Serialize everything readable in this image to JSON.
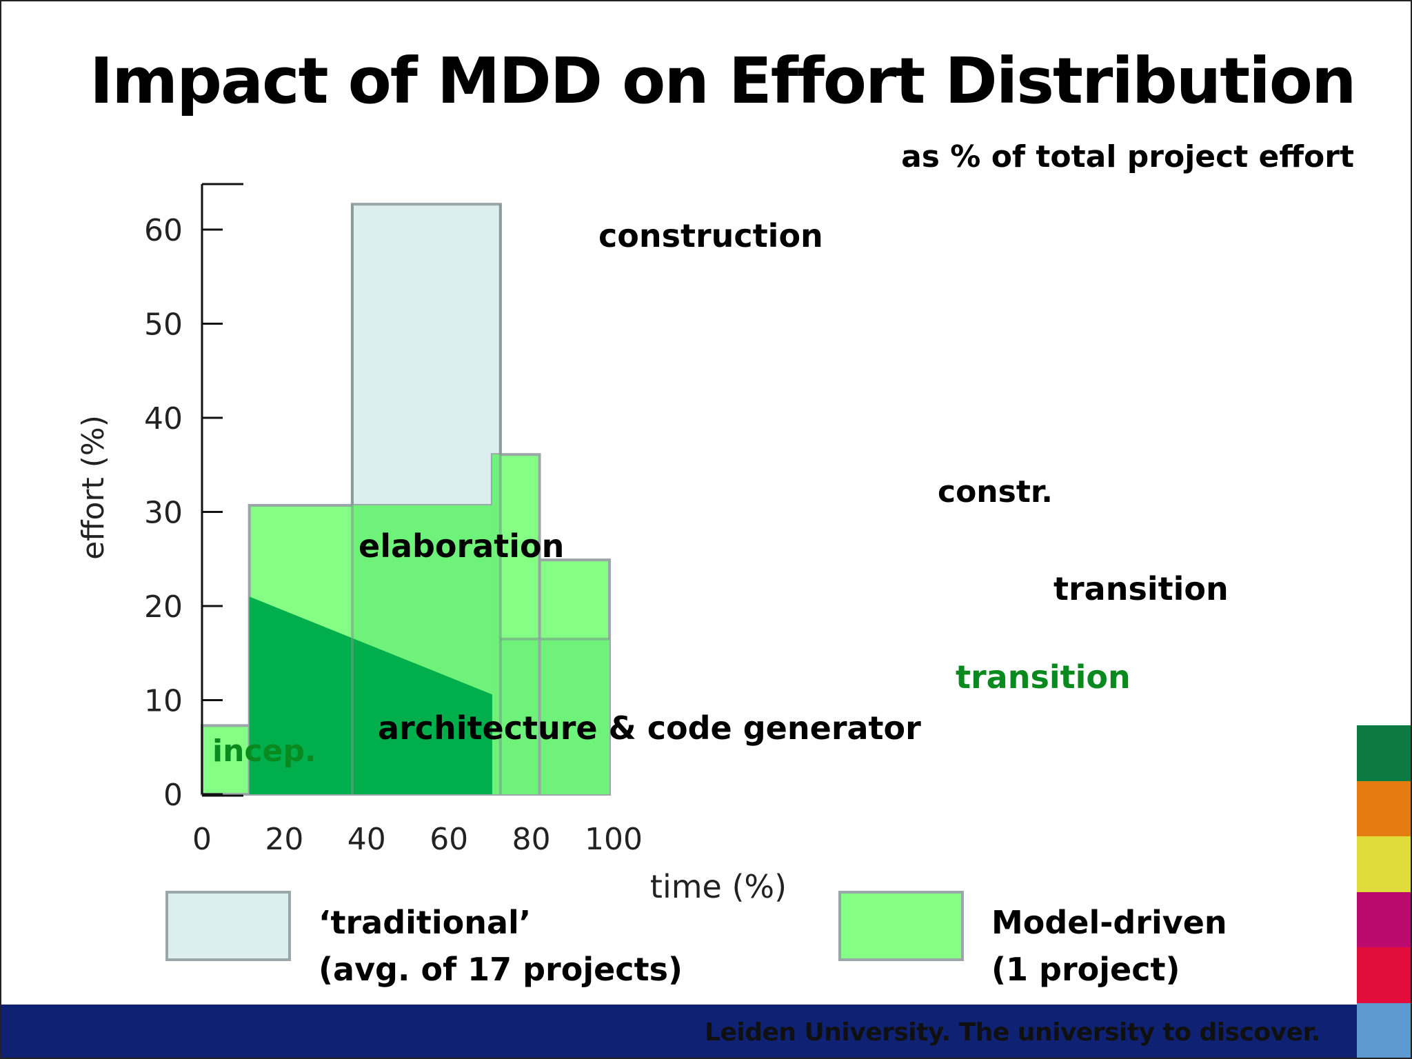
{
  "title": "Impact of MDD on Effort Distribution",
  "subtitle": "as % of total project effort",
  "footer": "Leiden University. The university to discover.",
  "brand_stripes": [
    "#0b7a43",
    "#e57c12",
    "#dedd3b",
    "#ba0a6e",
    "#e30d3c",
    "#5d98d1"
  ],
  "colors": {
    "traditional": "#ddeeee",
    "model_driven": "#85fe85",
    "overlap": "#6ff27a",
    "architecture": "#00af4c",
    "outline": "#9aa6a8"
  },
  "chart_data": {
    "type": "area",
    "title": "Impact of MDD on Effort Distribution",
    "xlabel": "time (%)",
    "ylabel": "effort (%)",
    "xlim": [
      0,
      100
    ],
    "ylim": [
      0,
      65
    ],
    "x_ticks": [
      "0",
      "20",
      "40",
      "60",
      "80",
      "100"
    ],
    "y_ticks": [
      "0",
      "10",
      "20",
      "30",
      "40",
      "50",
      "60"
    ],
    "grid": false,
    "series": [
      {
        "name": "'traditional' (avg. of 17 projects)",
        "phases": [
          {
            "label": "construction",
            "x": [
              36.5,
              72.5
            ],
            "y": 62.7
          },
          {
            "label": "",
            "x": [
              72.5,
              99
            ],
            "y": 16.5
          }
        ]
      },
      {
        "name": "Model-driven (1 project)",
        "phases": [
          {
            "label": "incep.",
            "x": [
              0,
              11.5
            ],
            "y": 7.3
          },
          {
            "label": "elaboration",
            "x": [
              11.5,
              70.5
            ],
            "y": 30.7
          },
          {
            "label": "constr.",
            "x": [
              70.5,
              82
            ],
            "y": 36.1
          },
          {
            "label": "transition",
            "x": [
              82,
              99
            ],
            "y": 24.9
          }
        ]
      },
      {
        "name": "architecture & code generator",
        "points": [
          [
            11.5,
            21
          ],
          [
            70.5,
            10.6
          ]
        ]
      }
    ],
    "annotations": [
      {
        "text": "architecture  & code generator",
        "x": 41,
        "y": 7
      },
      {
        "text": "transition",
        "x": 73.5,
        "y": 12.4
      }
    ]
  },
  "legend": {
    "traditional": {
      "line1": "‘traditional’",
      "line2": "(avg. of 17 projects)"
    },
    "model_driven": {
      "line1": "Model-driven",
      "line2": "(1 project)"
    }
  }
}
